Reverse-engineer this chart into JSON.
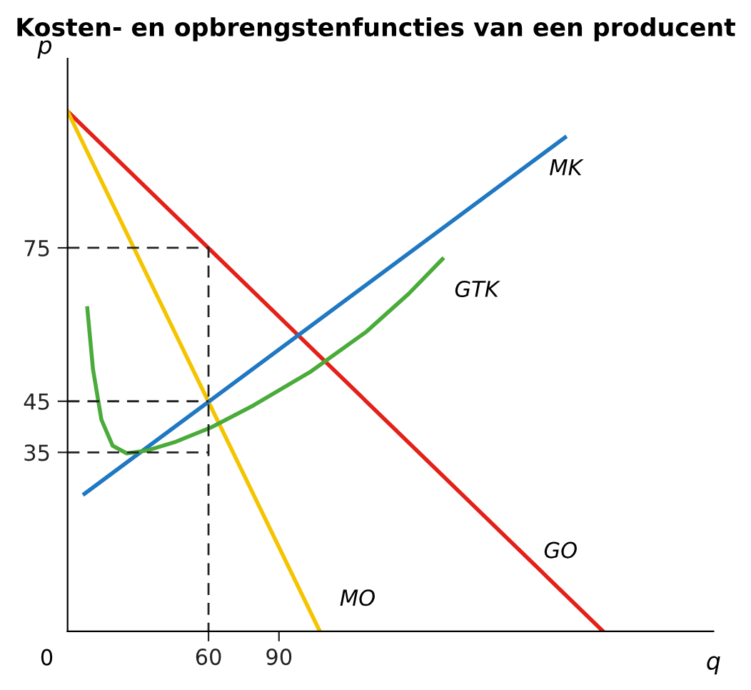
{
  "chart_data": {
    "type": "line",
    "title": "Kosten- en opbrengstenfuncties van een producent",
    "xlabel": "q",
    "ylabel": "p",
    "xlim": [
      0,
      275
    ],
    "ylim": [
      0,
      112
    ],
    "xticks": [
      60,
      90
    ],
    "yticks": [
      35,
      45,
      75
    ],
    "grid": false,
    "legend": false,
    "marker": "none",
    "series": [
      {
        "name": "GO",
        "color": "#e32119",
        "x": [
          0,
          228
        ],
        "values": [
          101.7,
          0
        ]
      },
      {
        "name": "MO",
        "color": "#f5c400",
        "x": [
          0,
          107.4
        ],
        "values": [
          101.7,
          0
        ]
      },
      {
        "name": "MK",
        "color": "#1f78c1",
        "x": [
          7.2,
          211.8
        ],
        "values": [
          26.9,
          96.6
        ]
      },
      {
        "name": "GTK",
        "color": "#4aab3a",
        "x": [
          8.4,
          10.8,
          14.4,
          19.2,
          25.2,
          34.2,
          46.2,
          61.2,
          79.2,
          103.2,
          127.2,
          145.2,
          159.6
        ],
        "values": [
          63.2,
          51.3,
          41.4,
          36.3,
          34.8,
          35.4,
          37.1,
          39.9,
          44.2,
          50.7,
          58.6,
          66.0,
          72.8
        ]
      },
      {
        "color": "#222222",
        "line_style": "dashed",
        "x": [
          0,
          60,
          60
        ],
        "values": [
          75,
          75,
          0
        ]
      },
      {
        "color": "#222222",
        "line_style": "dashed",
        "x": [
          0,
          60
        ],
        "values": [
          45,
          45
        ]
      },
      {
        "color": "#222222",
        "line_style": "dashed",
        "x": [
          0,
          60
        ],
        "values": [
          35,
          35
        ]
      }
    ],
    "annotations": [
      "0"
    ]
  }
}
